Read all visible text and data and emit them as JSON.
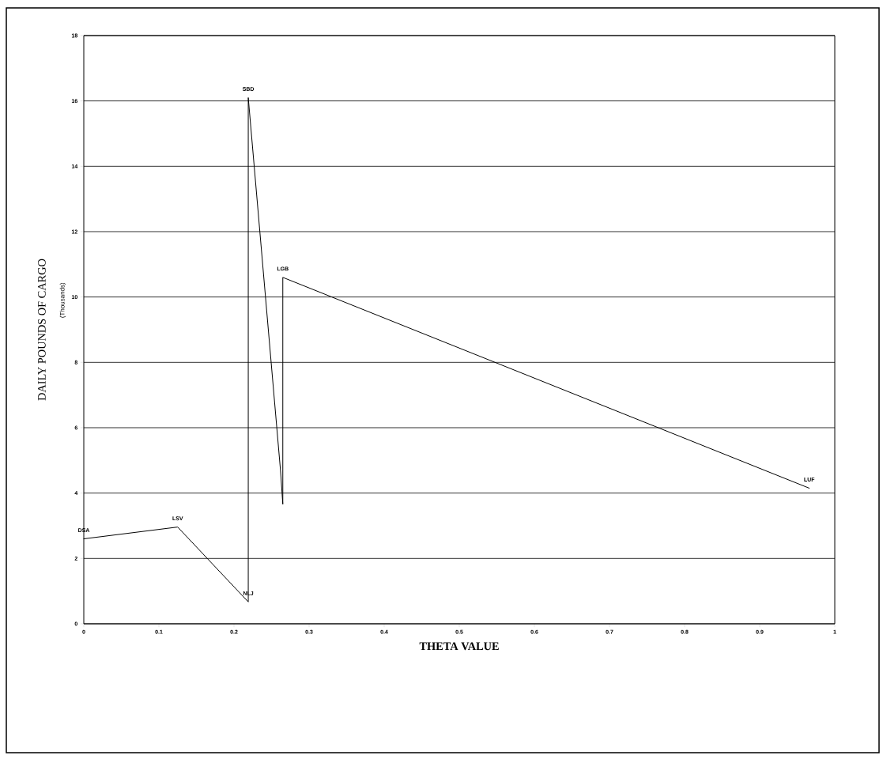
{
  "chart_data": {
    "type": "line",
    "xlabel": "THETA VALUE",
    "ylabel": "DAILY POUNDS OF CARGO",
    "annotations": [
      "(Thousands)",
      {
        "text": "DSA",
        "x": 0,
        "y": 2.6
      },
      {
        "text": "LSV",
        "x": 0.125,
        "y": 2.96
      },
      {
        "text": "NLJ",
        "x": 0.219,
        "y": 0.67
      },
      {
        "text": "SBD",
        "x": 0.219,
        "y": 16.1
      },
      {
        "text": "LGB",
        "x": 0.265,
        "y": 10.6
      },
      {
        "text": "LUF",
        "x": 0.966,
        "y": 4.15
      }
    ],
    "x": [
      0,
      0.125,
      0.219,
      0.219,
      0.262,
      0.265,
      0.265,
      0.966
    ],
    "values": [
      2.6,
      2.96,
      0.67,
      16.1,
      4.67,
      3.66,
      10.6,
      4.15
    ],
    "color": "#000000",
    "xlim": [
      0,
      1
    ],
    "ylim": [
      0,
      18
    ],
    "xticks": [
      0,
      0.1,
      0.2,
      0.3,
      0.4,
      0.5,
      0.6,
      0.7,
      0.8,
      0.9,
      1
    ],
    "yticks": [
      0,
      2,
      4,
      6,
      8,
      10,
      12,
      14,
      16,
      18
    ],
    "grid": "y",
    "marker": "none",
    "line_style": "solid"
  }
}
